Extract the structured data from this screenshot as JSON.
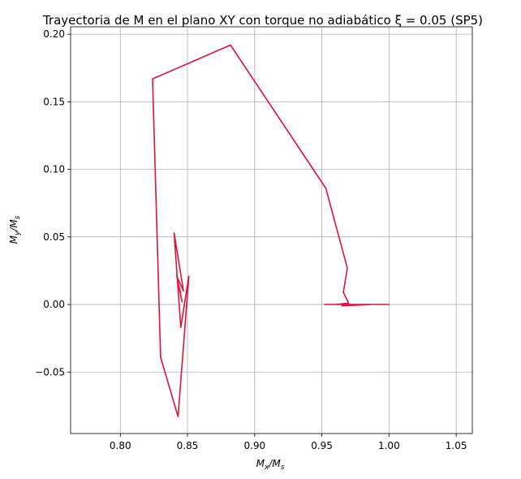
{
  "chart_data": {
    "type": "line",
    "title": "Trayectoria de M en el plano XY con torque no adiabático ξ = 0.05 (SP5)",
    "xlabel": {
      "main": "M",
      "sub1": "x",
      "sep": "/M",
      "sub2": "s"
    },
    "ylabel": {
      "main": "M",
      "sub1": "y",
      "sep": "/M",
      "sub2": "s"
    },
    "xlim": [
      0.763,
      1.062
    ],
    "ylim": [
      -0.0955,
      0.2055
    ],
    "grid": true,
    "xticks": [
      0.8,
      0.85,
      0.9,
      0.95,
      1.0,
      1.05
    ],
    "xtick_labels": [
      "0.80",
      "0.85",
      "0.90",
      "0.95",
      "1.00",
      "1.05"
    ],
    "yticks": [
      -0.05,
      0.0,
      0.05,
      0.1,
      0.15,
      0.2
    ],
    "ytick_labels": [
      "−0.05",
      "0.00",
      "0.05",
      "0.10",
      "0.15",
      "0.20"
    ],
    "series": [
      {
        "color": "#dc143c",
        "x": [
          1.0,
          0.952,
          0.988,
          0.965,
          0.97,
          0.985,
          0.96,
          0.97,
          0.966,
          0.969,
          0.953,
          0.882,
          0.824,
          0.83,
          0.843,
          0.851,
          0.845,
          0.84,
          0.847,
          0.842,
          0.846,
          0.843,
          0.845
        ],
        "y": [
          0.0,
          0.0,
          0.0,
          -0.001,
          0.0,
          0.0,
          0.0,
          0.001,
          0.009,
          0.027,
          0.086,
          0.192,
          0.167,
          -0.039,
          -0.083,
          0.021,
          -0.017,
          0.053,
          0.01,
          0.021,
          0.002,
          0.016,
          0.008
        ]
      }
    ]
  }
}
